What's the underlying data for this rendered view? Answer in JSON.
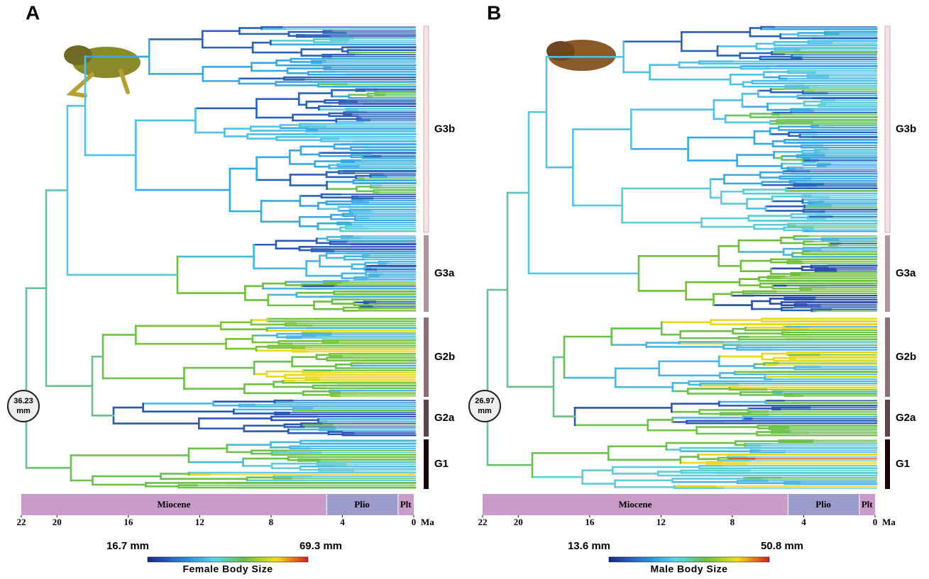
{
  "panels": [
    {
      "label": "A",
      "root_label": [
        "36.23",
        "mm"
      ],
      "clades": [
        "G3b",
        "G3a",
        "G2b",
        "G2a",
        "G1"
      ],
      "epochs": [
        {
          "name": "Miocene",
          "start": 22,
          "end": 4.9
        },
        {
          "name": "Plio",
          "start": 4.9,
          "end": 0.9
        },
        {
          "name": "Plt",
          "start": 0.9,
          "end": 0
        }
      ],
      "axis": {
        "xlim": [
          22,
          0
        ],
        "ticks": [
          22,
          20,
          16,
          12,
          8,
          4,
          0
        ],
        "unit": "Ma"
      },
      "scale": {
        "min_label": "16.7 mm",
        "max_label": "69.3 mm",
        "title": "Female Body Size"
      }
    },
    {
      "label": "B",
      "root_label": [
        "26.97",
        "mm"
      ],
      "clades": [
        "G3b",
        "G3a",
        "G2b",
        "G2a",
        "G1"
      ],
      "epochs": [
        {
          "name": "Miocene",
          "start": 22,
          "end": 4.9
        },
        {
          "name": "Plio",
          "start": 4.9,
          "end": 0.9
        },
        {
          "name": "Plt",
          "start": 0.9,
          "end": 0
        }
      ],
      "axis": {
        "xlim": [
          22,
          0
        ],
        "ticks": [
          22,
          20,
          16,
          12,
          8,
          4,
          0
        ],
        "unit": "Ma"
      },
      "scale": {
        "min_label": "13.6 mm",
        "max_label": "50.8 mm",
        "title": "Male Body Size"
      }
    }
  ]
}
